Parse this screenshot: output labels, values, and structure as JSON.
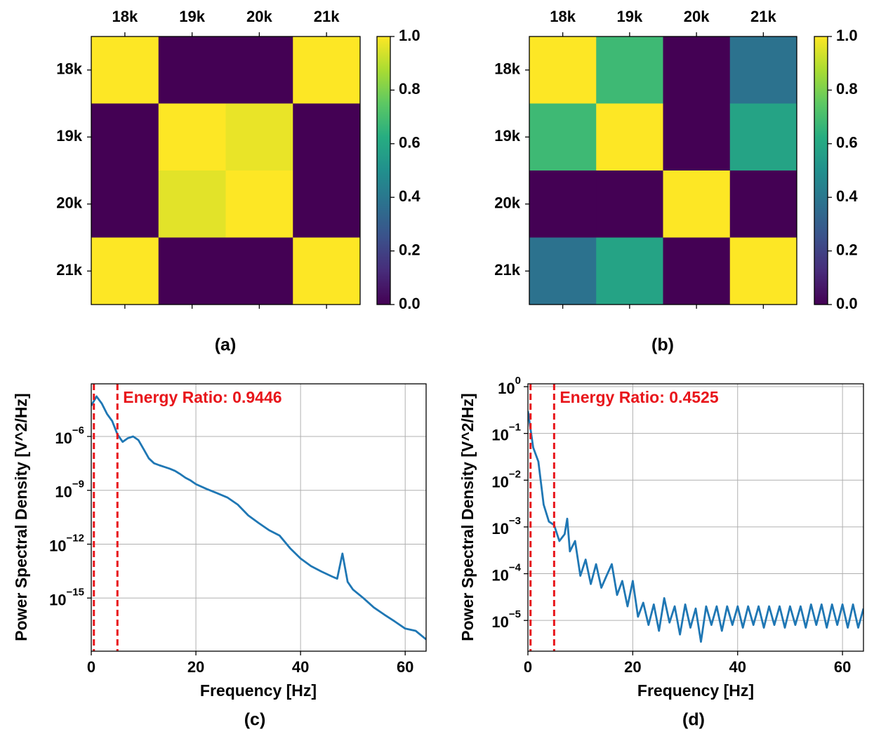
{
  "chart_data": [
    {
      "type": "heatmap",
      "caption": "(a)",
      "colormap": "viridis",
      "x_categories": [
        "18k",
        "19k",
        "20k",
        "21k"
      ],
      "y_categories": [
        "18k",
        "19k",
        "20k",
        "21k"
      ],
      "values": [
        [
          1,
          0,
          0,
          1
        ],
        [
          0,
          1,
          0.97,
          0
        ],
        [
          0,
          0.96,
          1,
          0
        ],
        [
          1,
          0,
          0,
          1
        ]
      ],
      "colorbar_lim": [
        0,
        1
      ],
      "colorbar_ticks": [
        {
          "value": 0,
          "label": "0.0"
        },
        {
          "value": 0.2,
          "label": "0.2"
        },
        {
          "value": 0.4,
          "label": "0.4"
        },
        {
          "value": 0.6,
          "label": "0.6"
        },
        {
          "value": 0.8,
          "label": "0.8"
        },
        {
          "value": 1,
          "label": "1.0"
        }
      ]
    },
    {
      "type": "heatmap",
      "caption": "(b)",
      "colormap": "viridis",
      "x_categories": [
        "18k",
        "19k",
        "20k",
        "21k"
      ],
      "y_categories": [
        "18k",
        "19k",
        "20k",
        "21k"
      ],
      "values": [
        [
          1,
          0.68,
          0,
          0.38
        ],
        [
          0.68,
          1,
          0,
          0.58
        ],
        [
          0,
          0,
          1,
          0
        ],
        [
          0.38,
          0.58,
          0,
          1
        ]
      ],
      "colorbar_lim": [
        0,
        1
      ],
      "colorbar_ticks": [
        {
          "value": 0,
          "label": "0.0"
        },
        {
          "value": 0.2,
          "label": "0.2"
        },
        {
          "value": 0.4,
          "label": "0.4"
        },
        {
          "value": 0.6,
          "label": "0.6"
        },
        {
          "value": 0.8,
          "label": "0.8"
        },
        {
          "value": 1,
          "label": "1.0"
        }
      ]
    },
    {
      "type": "line",
      "caption": "(c)",
      "xlabel": "Frequency [Hz]",
      "ylabel": "Power Spectral Density [V^2/Hz]",
      "yscale": "log",
      "grid": true,
      "xlim": [
        0,
        64
      ],
      "ylim": [
        1.1e-18,
        0.00085
      ],
      "xticks": [
        0,
        20,
        40,
        60
      ],
      "yticks": [
        {
          "value": 1e-06,
          "label": "10",
          "exponent": "−6"
        },
        {
          "value": 1e-09,
          "label": "10",
          "exponent": "−9"
        },
        {
          "value": 1e-12,
          "label": "10",
          "exponent": "−12"
        },
        {
          "value": 1e-15,
          "label": "10",
          "exponent": "−15"
        }
      ],
      "x": [
        0,
        1,
        2,
        3,
        4,
        5,
        6,
        7,
        8,
        9,
        10,
        11,
        12,
        13,
        14,
        15,
        16,
        17,
        18,
        19,
        20,
        22,
        24,
        26,
        28,
        30,
        32,
        34,
        36,
        38,
        40,
        42,
        44,
        46,
        47,
        48,
        49,
        50,
        52,
        54,
        56,
        58,
        60,
        62,
        64
      ],
      "series": [
        {
          "color": "#1f77b4",
          "values": [
            5.2e-05,
            0.00017,
            6.9e-05,
            1.8e-05,
            7.2e-06,
            1.3e-06,
            5e-07,
            8e-07,
            1e-06,
            6.3e-07,
            2e-07,
            6e-08,
            3.2e-08,
            2.5e-08,
            2e-08,
            1.6e-08,
            1.2e-08,
            8e-09,
            5e-09,
            3.5e-09,
            2.2e-09,
            1.2e-09,
            7e-10,
            4e-10,
            1.6e-10,
            4e-11,
            1.5e-11,
            6e-12,
            3e-12,
            6e-13,
            1.6e-13,
            6e-14,
            3e-14,
            1.6e-14,
            1.2e-14,
            3e-13,
            8e-15,
            3e-15,
            1e-15,
            3e-16,
            1.2e-16,
            5e-17,
            2e-17,
            1.5e-17,
            5e-18
          ]
        }
      ],
      "vlines": [
        {
          "x": 0.5,
          "color": "#e8161b"
        },
        {
          "x": 5,
          "color": "#e8161b"
        }
      ],
      "annotation": "Energy Ratio: 0.9446",
      "annotation_color": "#e8161b"
    },
    {
      "type": "line",
      "caption": "(d)",
      "xlabel": "Frequency [Hz]",
      "ylabel": "Power Spectral Density [V^2/Hz]",
      "yscale": "log",
      "grid": true,
      "xlim": [
        0,
        64
      ],
      "ylim": [
        2.2e-06,
        1.15
      ],
      "xticks": [
        0,
        20,
        40,
        60
      ],
      "yticks": [
        {
          "value": 1,
          "label": "10",
          "exponent": "0"
        },
        {
          "value": 0.1,
          "label": "10",
          "exponent": "−1"
        },
        {
          "value": 0.01,
          "label": "10",
          "exponent": "−2"
        },
        {
          "value": 0.001,
          "label": "10",
          "exponent": "−3"
        },
        {
          "value": 0.0001,
          "label": "10",
          "exponent": "−4"
        },
        {
          "value": 1e-05,
          "label": "10",
          "exponent": "−5"
        }
      ],
      "x": [
        0,
        1,
        2,
        3,
        4,
        5,
        6,
        7,
        7.5,
        8,
        9,
        10,
        11,
        12,
        13,
        14,
        15,
        16,
        17,
        18,
        19,
        20,
        21,
        22,
        23,
        24,
        25,
        26,
        27,
        28,
        29,
        30,
        31,
        32,
        33,
        34,
        35,
        36,
        37,
        38,
        39,
        40,
        41,
        42,
        43,
        44,
        45,
        46,
        47,
        48,
        49,
        50,
        51,
        52,
        53,
        54,
        55,
        56,
        57,
        58,
        59,
        60,
        61,
        62,
        63,
        64
      ],
      "series": [
        {
          "color": "#1f77b4",
          "values": [
            0.3,
            0.05,
            0.025,
            0.003,
            0.0013,
            0.0011,
            0.0005,
            0.0007,
            0.0015,
            0.0003,
            0.0005,
            9e-05,
            0.0002,
            6e-05,
            0.00016,
            5e-05,
            9e-05,
            0.00016,
            3.5e-05,
            7e-05,
            2e-05,
            7e-05,
            1.2e-05,
            2.4e-05,
            8e-06,
            2.2e-05,
            6e-06,
            3e-05,
            9e-06,
            2e-05,
            5e-06,
            2.2e-05,
            7e-06,
            1.8e-05,
            3.5e-06,
            2e-05,
            8e-06,
            2e-05,
            6e-06,
            2e-05,
            8e-06,
            2e-05,
            7e-06,
            2e-05,
            8e-06,
            2e-05,
            7e-06,
            2e-05,
            8e-06,
            2e-05,
            7e-06,
            2e-05,
            8e-06,
            2e-05,
            7e-06,
            2.2e-05,
            8e-06,
            2.2e-05,
            7e-06,
            2.2e-05,
            8e-06,
            2.2e-05,
            7e-06,
            2.2e-05,
            7e-06,
            1.8e-05
          ]
        }
      ],
      "vlines": [
        {
          "x": 0.5,
          "color": "#e8161b"
        },
        {
          "x": 5,
          "color": "#e8161b"
        }
      ],
      "annotation": "Energy Ratio: 0.4525",
      "annotation_color": "#e8161b"
    }
  ]
}
